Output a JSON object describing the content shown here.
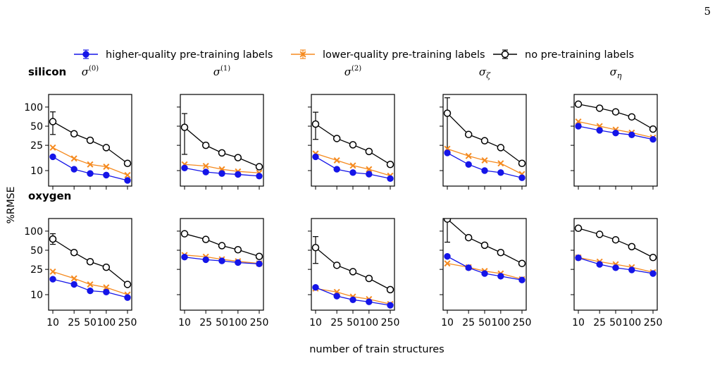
{
  "page": {
    "number": "5"
  },
  "chart_data": {
    "type": "line",
    "ylabel": "%RMSE",
    "xlabel": "number of train structures",
    "x": [
      10,
      25,
      50,
      100,
      250
    ],
    "x_scale": "log",
    "y_scale": "log",
    "yticks": [
      10,
      25,
      50,
      100
    ],
    "ylim": [
      6.0,
      150
    ],
    "grid": false,
    "legend": {
      "placement": "top",
      "entries": [
        {
          "name": "higher-quality pre-training labels",
          "color": "#1515e8",
          "marker": "filled-circle"
        },
        {
          "name": "lower-quality pre-training labels",
          "color": "#f58a1f",
          "marker": "x"
        },
        {
          "name": "no pre-training labels",
          "color": "#000000",
          "marker": "open-circle"
        }
      ]
    },
    "rows": [
      {
        "label": "silicon"
      },
      {
        "label": "oxygen"
      }
    ],
    "columns": [
      {
        "title": "σ",
        "sup": "(0)",
        "sub": ""
      },
      {
        "title": "σ",
        "sup": "(1)",
        "sub": ""
      },
      {
        "title": "σ",
        "sup": "(2)",
        "sub": ""
      },
      {
        "title": "σ",
        "sup": "",
        "sub": "ζ"
      },
      {
        "title": "σ",
        "sup": "",
        "sub": "η"
      }
    ],
    "panels": [
      {
        "row": 0,
        "col": 0,
        "series": [
          {
            "values": [
              16.5,
              10.5,
              9.0,
              8.5,
              7.0
            ]
          },
          {
            "values": [
              23,
              15.5,
              12.5,
              11.5,
              8.5
            ]
          },
          {
            "values": [
              59,
              38,
              30,
              23,
              13
            ],
            "err_low": [
              37,
              null,
              28,
              null,
              null
            ],
            "err_high": [
              84,
              null,
              32,
              null,
              null
            ]
          }
        ]
      },
      {
        "row": 0,
        "col": 1,
        "series": [
          {
            "values": [
              11,
              9.5,
              9.0,
              8.7,
              8.2
            ]
          },
          {
            "values": [
              12.5,
              11.8,
              10.5,
              9.7,
              9.2
            ]
          },
          {
            "values": [
              48,
              25,
              19,
              16,
              11.5
            ],
            "err_low": [
              18,
              null,
              null,
              null,
              null
            ],
            "err_high": [
              79,
              null,
              null,
              null,
              null
            ]
          }
        ]
      },
      {
        "row": 0,
        "col": 2,
        "series": [
          {
            "values": [
              16.5,
              10.5,
              9.3,
              8.8,
              7.5
            ]
          },
          {
            "values": [
              18.5,
              14.5,
              12,
              10.5,
              8.3
            ]
          },
          {
            "values": [
              54,
              32,
              25.5,
              20,
              12.5
            ],
            "err_low": [
              31,
              null,
              null,
              null,
              null
            ],
            "err_high": [
              83,
              null,
              null,
              null,
              null
            ]
          }
        ]
      },
      {
        "row": 0,
        "col": 3,
        "series": [
          {
            "values": [
              19,
              12.5,
              10,
              9.3,
              7.7
            ]
          },
          {
            "values": [
              22,
              17,
              14.5,
              13,
              8.8
            ]
          },
          {
            "values": [
              80,
              37,
              29.5,
              23,
              13
            ],
            "err_low": [
              20,
              null,
              null,
              null,
              null
            ],
            "err_high": [
              140,
              null,
              null,
              null,
              null
            ]
          }
        ]
      },
      {
        "row": 0,
        "col": 4,
        "series": [
          {
            "values": [
              50,
              43,
              39,
              36.5,
              31
            ]
          },
          {
            "values": [
              59,
              50,
              44,
              39.5,
              33
            ]
          },
          {
            "values": [
              111,
              96,
              84,
              70,
              45
            ],
            "err_low": [
              104,
              null,
              null,
              null,
              null
            ],
            "err_high": [
              118,
              null,
              null,
              null,
              null
            ]
          }
        ]
      },
      {
        "row": 1,
        "col": 0,
        "series": [
          {
            "values": [
              17.5,
              14.5,
              11.5,
              11,
              9
            ]
          },
          {
            "values": [
              23,
              18,
              14.5,
              13,
              10
            ]
          },
          {
            "values": [
              75,
              46,
              33,
              27,
              14.5
            ],
            "err_low": [
              62,
              null,
              null,
              null,
              null
            ],
            "err_high": [
              91,
              null,
              null,
              null,
              null
            ]
          }
        ]
      },
      {
        "row": 1,
        "col": 1,
        "series": [
          {
            "values": [
              39,
              35.5,
              34,
              32,
              30.5
            ]
          },
          {
            "values": [
              42,
              39.5,
              36,
              33.5,
              31
            ]
          },
          {
            "values": [
              91,
              74,
              59,
              51,
              40
            ]
          }
        ]
      },
      {
        "row": 1,
        "col": 2,
        "series": [
          {
            "values": [
              13,
              9.5,
              8.3,
              7.7,
              6.8
            ]
          },
          {
            "values": [
              12.5,
              11,
              9.3,
              8.5,
              7.1
            ]
          },
          {
            "values": [
              55,
              29,
              23,
              18,
              12
            ],
            "err_low": [
              31,
              null,
              null,
              null,
              null
            ],
            "err_high": [
              82,
              null,
              null,
              null,
              null
            ]
          }
        ]
      },
      {
        "row": 1,
        "col": 3,
        "series": [
          {
            "values": [
              40,
              26.5,
              21.5,
              19.5,
              17
            ]
          },
          {
            "values": [
              31,
              27,
              23.5,
              21.5,
              17.5
            ]
          },
          {
            "values": [
              155,
              79,
              60,
              46,
              31
            ],
            "err_low": [
              67,
              null,
              null,
              null,
              null
            ],
            "err_high": [
              240,
              null,
              null,
              null,
              null
            ]
          }
        ]
      },
      {
        "row": 1,
        "col": 4,
        "series": [
          {
            "values": [
              38,
              30,
              26.5,
              24.5,
              21.5
            ]
          },
          {
            "values": [
              38.5,
              33,
              30,
              27,
              22.5
            ]
          },
          {
            "values": [
              111,
              89,
              73,
              57,
              38.5
            ],
            "err_low": [
              102,
              null,
              null,
              null,
              null
            ],
            "err_high": [
              120,
              null,
              null,
              null,
              null
            ]
          }
        ]
      }
    ]
  }
}
